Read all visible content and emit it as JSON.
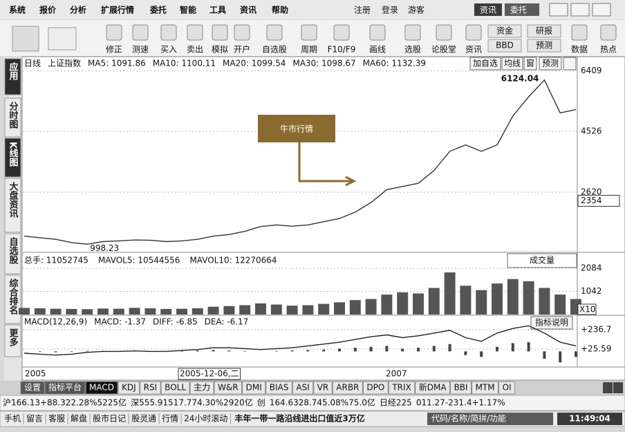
{
  "menu": {
    "items": [
      "系统",
      "报价",
      "分析",
      "扩展行情",
      "委托",
      "智能",
      "工具",
      "资讯",
      "帮助"
    ],
    "right": [
      "注册",
      "登录",
      "游客"
    ],
    "buttons": [
      "资讯",
      "委托"
    ]
  },
  "toolbar": {
    "labels": [
      "修正",
      "测速",
      "买入",
      "卖出",
      "模拟",
      "开户",
      "自选股",
      "周期",
      "F10/F9",
      "画线",
      "选股",
      "论股堂",
      "资讯",
      "资金",
      "BBD",
      "研报",
      "预测",
      "数据",
      "热点"
    ]
  },
  "sidebar": [
    "应用",
    "分时图",
    "K线图",
    "大盘资讯",
    "自选股",
    "综合排名",
    "更多"
  ],
  "kline": {
    "header": [
      "日线",
      "上证指数",
      "MA5: 1091.86",
      "MA10: 1100.11",
      "MA20: 1099.54",
      "MA30: 1098.67",
      "MA60: 1132.39"
    ],
    "buttons": [
      "加自选",
      "均线",
      "窗",
      "预测"
    ],
    "annotation": "牛市行情",
    "high_label": "6124.04",
    "low_label": "998.23",
    "cursor_label": 2354,
    "chart_data": {
      "type": "line",
      "color": "#333333",
      "values": [
        1250,
        1200,
        1150,
        1050,
        998.23,
        1080,
        1100,
        1130,
        1120,
        1080,
        1100,
        1150,
        1250,
        1300,
        1400,
        1550,
        1600,
        1560,
        1600,
        1700,
        1800,
        2000,
        2300,
        2700,
        2800,
        2900,
        3300,
        3900,
        4100,
        3900,
        4100,
        5000,
        5600,
        6124.04,
        5100,
        5200
      ],
      "ylim": [
        745,
        6790
      ],
      "yticks": [
        6409,
        4526,
        2620
      ],
      "grid": true
    }
  },
  "volume": {
    "header": [
      "总手: 11052745",
      "MAVOL5: 10544556",
      "MAVOL10: 12270664"
    ],
    "dropdown": "成交量",
    "multiplier": "X10",
    "chart_data": {
      "type": "bar",
      "color": "#555555",
      "values": [
        300,
        280,
        260,
        250,
        240,
        270,
        260,
        300,
        280,
        250,
        260,
        280,
        350,
        380,
        420,
        500,
        450,
        400,
        420,
        480,
        550,
        650,
        700,
        900,
        1000,
        950,
        1200,
        1900,
        1300,
        1100,
        1400,
        1600,
        1500,
        1200,
        900,
        700
      ],
      "ylim": [
        0,
        2715
      ],
      "yticks": [
        2084,
        1042
      ],
      "grid": true
    }
  },
  "macd": {
    "header": [
      "MACD(12,26,9)",
      "MACD: -1.37",
      "DIFF: -6.85",
      "DEA: -6.17"
    ],
    "button": "指标说明",
    "chart_data": {
      "type": "bar",
      "color": "#444444",
      "values": [
        0,
        -5,
        -10,
        -5,
        5,
        5,
        0,
        3,
        -3,
        0,
        5,
        10,
        15,
        10,
        5,
        0,
        5,
        10,
        15,
        20,
        30,
        40,
        50,
        60,
        30,
        40,
        60,
        80,
        -40,
        -60,
        50,
        90,
        100,
        -80,
        -120,
        -60
      ],
      "series": [
        {
          "name": "DIFF",
          "color": "#222222",
          "values": [
            -20,
            -30,
            -40,
            -30,
            -10,
            0,
            0,
            5,
            0,
            0,
            10,
            20,
            40,
            40,
            30,
            20,
            30,
            40,
            60,
            80,
            100,
            130,
            160,
            180,
            150,
            170,
            200,
            230,
            150,
            110,
            200,
            250,
            280,
            200,
            100,
            60
          ]
        }
      ],
      "ylim": [
        -163,
        380
      ],
      "yticks": [
        {
          "value": 236.7,
          "label": "+236.7"
        },
        {
          "value": 25.59,
          "label": "+25.59"
        }
      ],
      "grid": true
    }
  },
  "date_axis": [
    "2005",
    "2005-12-06,二",
    "2007"
  ],
  "tabs": [
    "设置",
    "指标平台",
    "MACD",
    "KDJ",
    "RSI",
    "BOLL",
    "主力",
    "W&R",
    "DMI",
    "BIAS",
    "ASI",
    "VR",
    "ARBR",
    "DPO",
    "TRIX",
    "新DMA",
    "BBI",
    "MTM",
    "OI"
  ],
  "ticker": [
    "沪166.13+88.322.28%5225亿",
    "深555.91517.774.30%2920亿",
    "创",
    "164.6328.745.08%75.0亿",
    "日经225",
    "011.27-231.4+1.17%"
  ],
  "footer": {
    "links": [
      "手机",
      "留言",
      "客服",
      "解盘",
      "股市日记",
      "股灵通",
      "行情",
      "24小时滚动"
    ],
    "news": "丰年一带一路沿线进出口值近3万亿",
    "search": "代码/名称/简拼/功能",
    "clock": "11:49:04"
  }
}
